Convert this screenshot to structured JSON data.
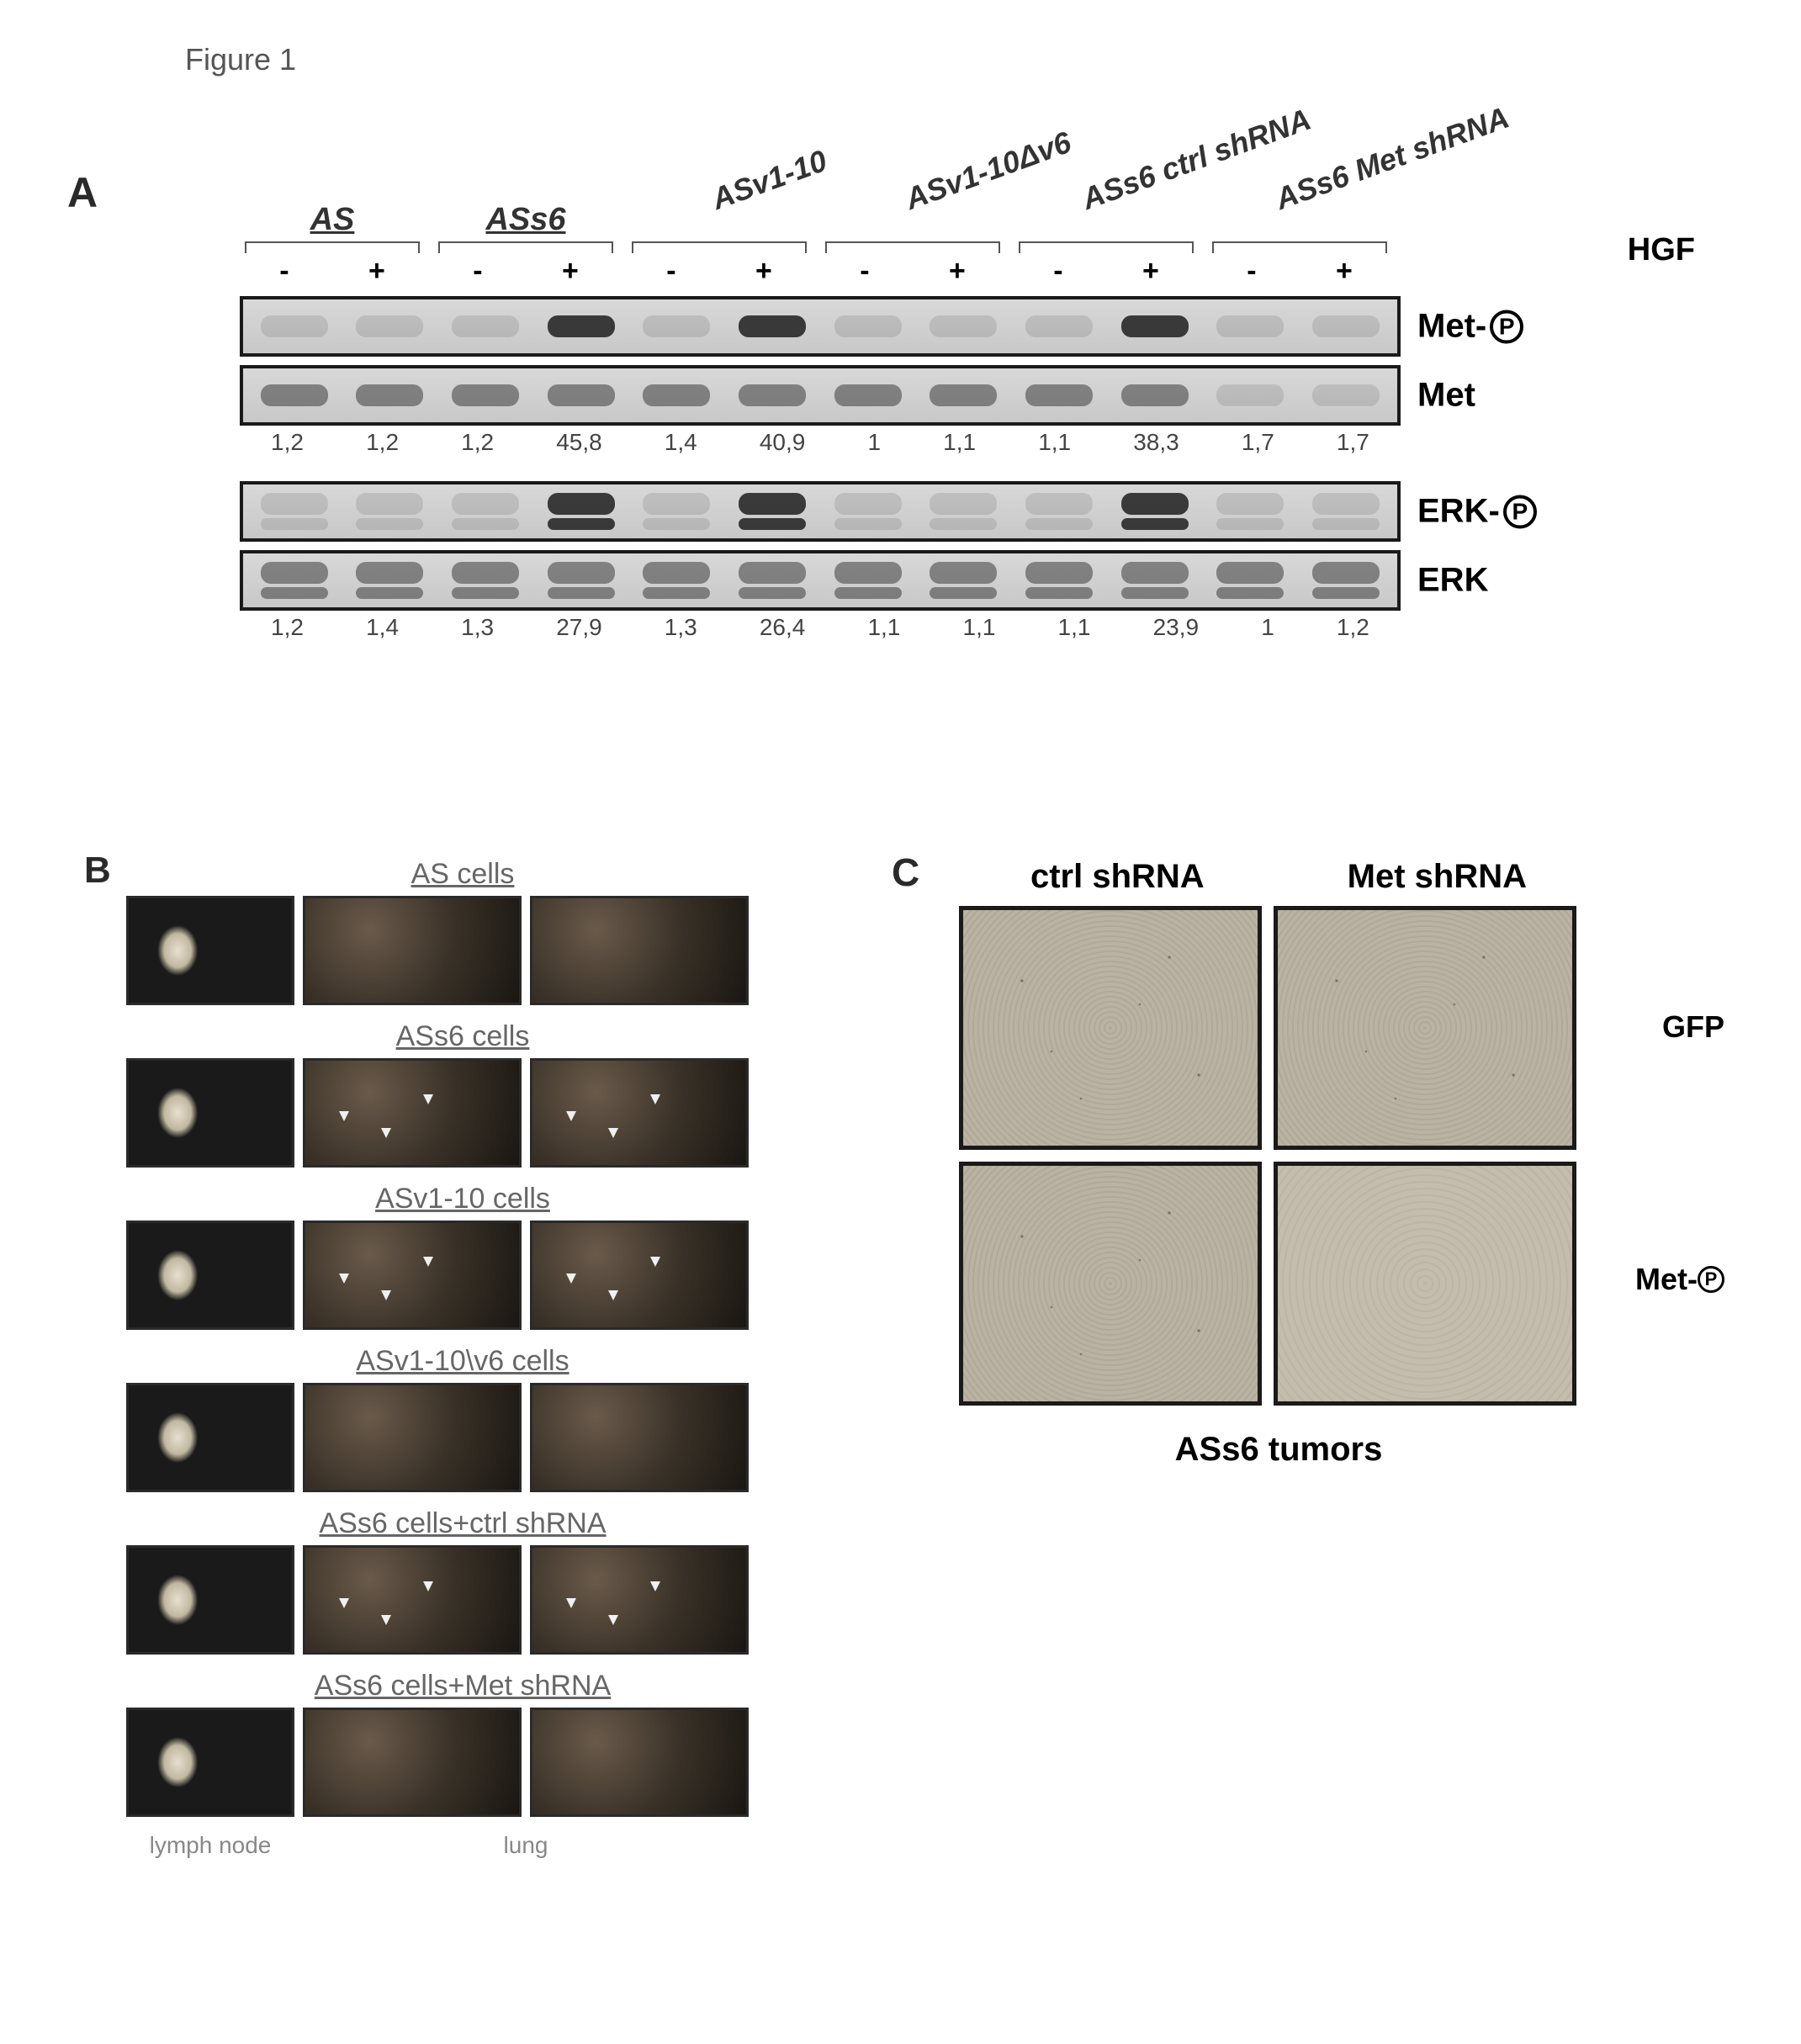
{
  "figure_label": "Figure 1",
  "panelA": {
    "letter": "A",
    "lane_groups": [
      "AS",
      "ASs6",
      "ASv1-10",
      "ASv1-10Δv6",
      "ASs6 ctrl shRNA",
      "ASs6 Met shRNA"
    ],
    "hgf_signs": [
      "-",
      "+",
      "-",
      "+",
      "-",
      "+",
      "-",
      "+",
      "-",
      "+",
      "-",
      "+"
    ],
    "hgf_label": "HGF",
    "blots": [
      {
        "label": "Met-",
        "phospho": true,
        "intensity": [
          "faint",
          "faint",
          "faint",
          "strong",
          "faint",
          "strong",
          "faint",
          "faint",
          "faint",
          "strong",
          "faint",
          "faint"
        ]
      },
      {
        "label": "Met",
        "phospho": false,
        "intensity": [
          "med",
          "med",
          "med",
          "med",
          "med",
          "med",
          "med",
          "med",
          "med",
          "med",
          "faint",
          "faint"
        ]
      }
    ],
    "quant_met": [
      "1,2",
      "1,2",
      "1,2",
      "45,8",
      "1,4",
      "40,9",
      "1",
      "1,1",
      "1,1",
      "38,3",
      "1,7",
      "1,7"
    ],
    "blots2": [
      {
        "label": "ERK-",
        "phospho": true,
        "intensity": [
          "faint",
          "faint",
          "faint",
          "strong",
          "faint",
          "strong",
          "faint",
          "faint",
          "faint",
          "strong",
          "faint",
          "faint"
        ],
        "double": true
      },
      {
        "label": "ERK",
        "phospho": false,
        "intensity": [
          "med",
          "med",
          "med",
          "med",
          "med",
          "med",
          "med",
          "med",
          "med",
          "med",
          "med",
          "med"
        ],
        "double": true
      }
    ],
    "quant_erk": [
      "1,2",
      "1,4",
      "1,3",
      "27,9",
      "1,3",
      "26,4",
      "1,1",
      "1,1",
      "1,1",
      "23,9",
      "1",
      "1,2"
    ]
  },
  "panelB": {
    "letter": "B",
    "rows": [
      "AS cells",
      "ASs6 cells",
      "ASv1-10 cells",
      "ASv1-10\\v6 cells",
      "ASs6 cells+ctrl shRNA",
      "ASs6 cells+Met shRNA"
    ],
    "axis_lymph": "lymph node",
    "axis_lung": "lung"
  },
  "panelC": {
    "letter": "C",
    "col_headers": [
      "ctrl shRNA",
      "Met shRNA"
    ],
    "row_labels": [
      "GFP",
      "Met-"
    ],
    "row_phospho": [
      false,
      true
    ],
    "caption": "ASs6 tumors"
  },
  "colors": {
    "bg": "#ffffff",
    "text": "#000000",
    "blot_border": "#1a1a1a",
    "faint_band": "#888888",
    "strong_band": "#2a2a2a"
  }
}
